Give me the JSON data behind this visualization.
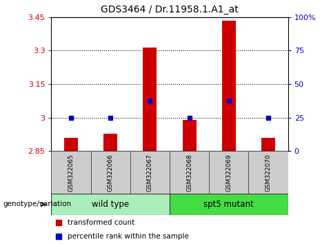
{
  "title": "GDS3464 / Dr.11958.1.A1_at",
  "samples": [
    "GSM322065",
    "GSM322066",
    "GSM322067",
    "GSM322068",
    "GSM322069",
    "GSM322070"
  ],
  "transformed_counts": [
    2.91,
    2.93,
    3.315,
    2.99,
    3.435,
    2.91
  ],
  "percentile_y_values": [
    3.0,
    3.0,
    3.075,
    3.0,
    3.075,
    3.0
  ],
  "ylim": [
    2.85,
    3.45
  ],
  "yticks": [
    2.85,
    3.0,
    3.15,
    3.3,
    3.45
  ],
  "ytick_labels": [
    "2.85",
    "3",
    "3.15",
    "3.3",
    "3.45"
  ],
  "right_yticks_pct": [
    0,
    25,
    50,
    75,
    100
  ],
  "right_ytick_labels": [
    "0",
    "25",
    "50",
    "75",
    "100%"
  ],
  "bar_color": "#cc0000",
  "dot_color": "#0000cc",
  "bar_width": 0.35,
  "group_colors": {
    "wild type": "#aaeebb",
    "spt5 mutant": "#44dd44"
  },
  "group_label": "genotype/variation",
  "legend_bar": "transformed count",
  "legend_dot": "percentile rank within the sample",
  "bar_base": 2.85,
  "grid_dotted_at": [
    3.0,
    3.15,
    3.3
  ],
  "wild_type_indices": [
    0,
    1,
    2
  ],
  "spt5_indices": [
    3,
    4,
    5
  ]
}
